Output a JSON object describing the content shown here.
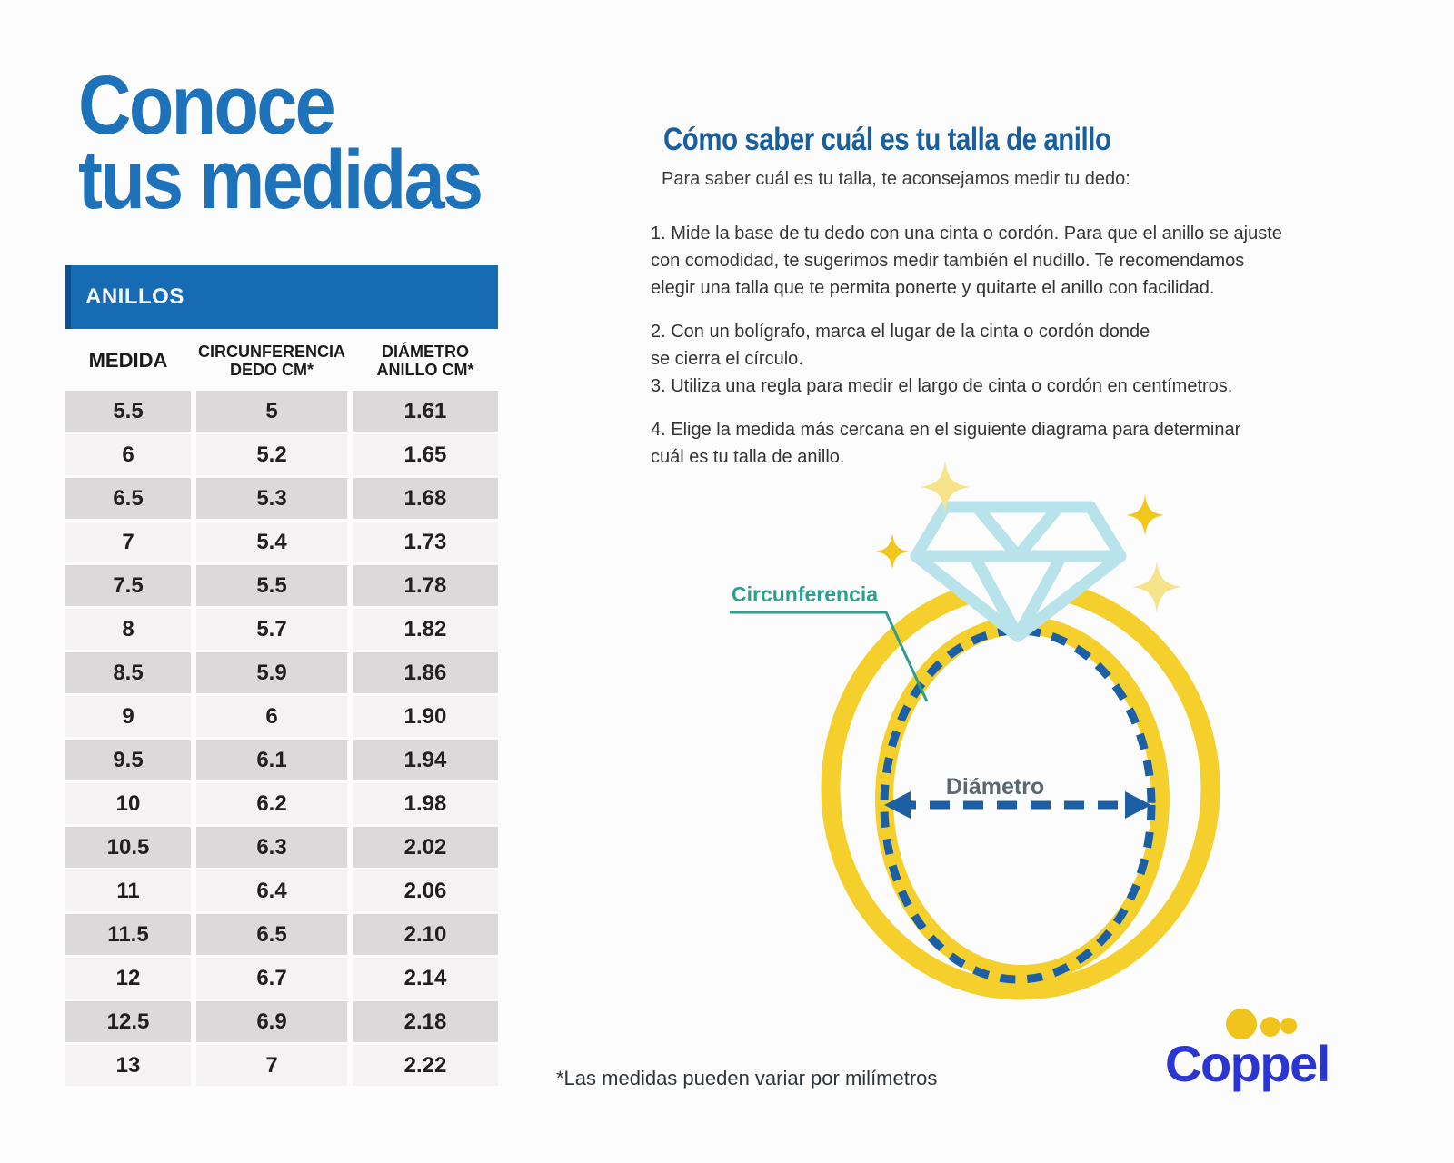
{
  "colors": {
    "page_bg": "#fcfcfc",
    "title_blue": "#1e72ba",
    "heading_blue": "#1a5f9d",
    "band_blue": "#176bb3",
    "band_border": "#0f4f8c",
    "row_dark": "#dbd9d9",
    "row_light": "#f4f2f2",
    "cell_text": "#1f1f1f",
    "ring_yellow": "#f5d02c",
    "diamond_cyan": "#b9e3ea",
    "dash_blue": "#1d5fa4",
    "teal": "#2f9d8f",
    "diameter_gray": "#5a6971",
    "coppel_blue": "#2b35cf",
    "dot_yellow": "#f0c41c",
    "sparkle_gold": "#f2c71d",
    "sparkle_pale": "#f6e38a"
  },
  "left": {
    "title_line1": "Conoce",
    "title_line2": "tus medidas",
    "table": {
      "band_label": "ANILLOS",
      "col_medida": "MEDIDA",
      "col_circ_1": "CIRCUNFERENCIA",
      "col_circ_2": "DEDO CM*",
      "col_diam_1": "DIÁMETRO",
      "col_diam_2": "ANILLO CM*",
      "rows": [
        [
          "5.5",
          "5",
          "1.61"
        ],
        [
          "6",
          "5.2",
          "1.65"
        ],
        [
          "6.5",
          "5.3",
          "1.68"
        ],
        [
          "7",
          "5.4",
          "1.73"
        ],
        [
          "7.5",
          "5.5",
          "1.78"
        ],
        [
          "8",
          "5.7",
          "1.82"
        ],
        [
          "8.5",
          "5.9",
          "1.86"
        ],
        [
          "9",
          "6",
          "1.90"
        ],
        [
          "9.5",
          "6.1",
          "1.94"
        ],
        [
          "10",
          "6.2",
          "1.98"
        ],
        [
          "10.5",
          "6.3",
          "2.02"
        ],
        [
          "11",
          "6.4",
          "2.06"
        ],
        [
          "11.5",
          "6.5",
          "2.10"
        ],
        [
          "12",
          "6.7",
          "2.14"
        ],
        [
          "12.5",
          "6.9",
          "2.18"
        ],
        [
          "13",
          "7",
          "2.22"
        ]
      ]
    }
  },
  "right": {
    "heading": "Cómo saber cuál es tu talla de anillo",
    "intro": "Para saber cuál es tu talla, te aconsejamos medir tu dedo:",
    "paragraphs": [
      {
        "lines": [
          "1. Mide la base de tu dedo con una cinta o cordón. Para que el anillo se ajuste",
          "con comodidad, te sugerimos medir también el nudillo. Te recomendamos",
          "elegir una talla que te permita ponerte y quitarte el anillo con facilidad."
        ]
      },
      {
        "lines": [
          "2. Con un bolígrafo, marca el lugar de la cinta o cordón donde",
          "se cierra el círculo.",
          "3. Utiliza una regla para medir el largo de cinta o cordón en centímetros."
        ]
      },
      {
        "lines": [
          "4. Elige la medida más cercana en el siguiente diagrama para determinar",
          "cuál es tu talla de anillo."
        ]
      }
    ]
  },
  "diagram": {
    "circumference_label": "Circunferencia",
    "diameter_label": "Diámetro"
  },
  "footnote": "*Las medidas pueden variar por milímetros",
  "logo": {
    "text": "Coppel"
  }
}
